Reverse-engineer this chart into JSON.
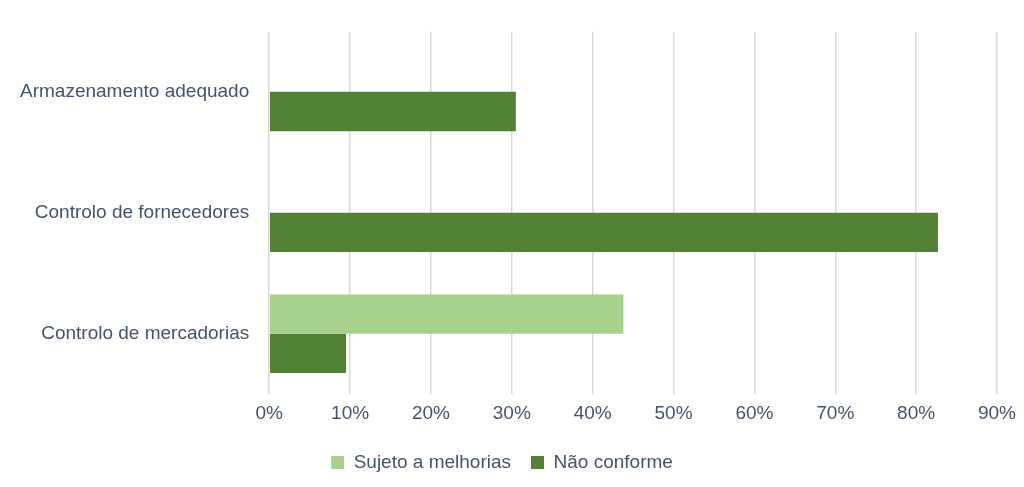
{
  "chart_data": {
    "type": "bar",
    "orientation": "horizontal",
    "categories": [
      "Armazenamento adequado",
      "Controlo de fornecedores",
      "Controlo de mercadorias"
    ],
    "series": [
      {
        "name": "Sujeto a melhorias",
        "color": "#a9d18e",
        "values": [
          null,
          null,
          43.8
        ]
      },
      {
        "name": "Não conforme",
        "color": "#548235",
        "values": [
          30.5,
          82.7,
          9.5
        ]
      }
    ],
    "xlim": [
      0,
      90
    ],
    "xticks": [
      {
        "value": 0,
        "label": "0%"
      },
      {
        "value": 10,
        "label": "10%"
      },
      {
        "value": 20,
        "label": "20%"
      },
      {
        "value": 30,
        "label": "30%"
      },
      {
        "value": 40,
        "label": "40%"
      },
      {
        "value": 50,
        "label": "50%"
      },
      {
        "value": 60,
        "label": "60%"
      },
      {
        "value": 70,
        "label": "70%"
      },
      {
        "value": 80,
        "label": "80%"
      },
      {
        "value": 90,
        "label": "90%"
      }
    ],
    "grid": "x",
    "legend": "bottom"
  }
}
